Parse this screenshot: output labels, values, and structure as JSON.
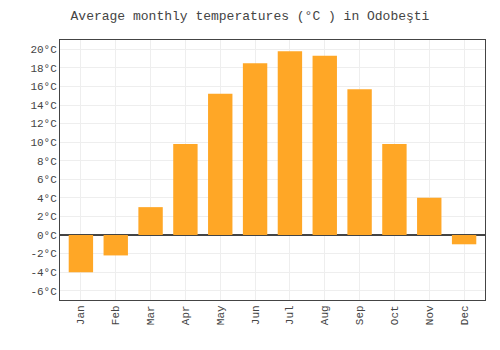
{
  "chart_data": {
    "type": "bar",
    "title": "Average monthly temperatures (°C ) in Odobeşti",
    "categories": [
      "Jan",
      "Feb",
      "Mar",
      "Apr",
      "May",
      "Jun",
      "Jul",
      "Aug",
      "Sep",
      "Oct",
      "Nov",
      "Dec"
    ],
    "values": [
      -4.0,
      -2.2,
      3.0,
      9.8,
      15.2,
      18.5,
      19.8,
      19.3,
      15.7,
      9.8,
      4.0,
      -1.0
    ],
    "color": "#FFA726",
    "ylim": [
      -7,
      21
    ],
    "yticks": [
      {
        "value": -6,
        "label": "-6°C"
      },
      {
        "value": -4,
        "label": "-4°C"
      },
      {
        "value": -2,
        "label": "-2°C"
      },
      {
        "value": 0,
        "label": "0°C"
      },
      {
        "value": 2,
        "label": "2°C"
      },
      {
        "value": 4,
        "label": "4°C"
      },
      {
        "value": 6,
        "label": "6°C"
      },
      {
        "value": 8,
        "label": "8°C"
      },
      {
        "value": 10,
        "label": "10°C"
      },
      {
        "value": 12,
        "label": "12°C"
      },
      {
        "value": 14,
        "label": "14°C"
      },
      {
        "value": 16,
        "label": "16°C"
      },
      {
        "value": 18,
        "label": "18°C"
      },
      {
        "value": 20,
        "label": "20°C"
      }
    ],
    "grid": true
  }
}
